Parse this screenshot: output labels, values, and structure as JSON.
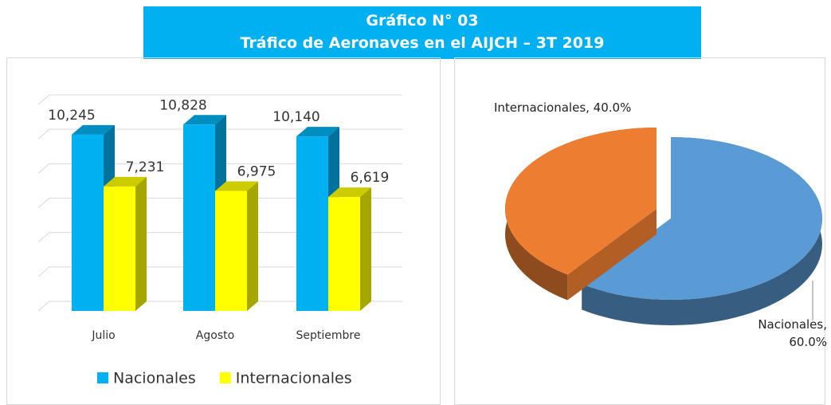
{
  "header": {
    "title": "Gráfico N° 03",
    "subtitle": "Tráfico de Aeronaves en el AIJCH – 3T 2019"
  },
  "chart_data": [
    {
      "type": "bar3d",
      "categories": [
        "Julio",
        "Agosto",
        "Septiembre"
      ],
      "series": [
        {
          "name": "Nacionales",
          "color": "#00b0f0",
          "values": [
            10245,
            10828,
            10140
          ],
          "value_labels": [
            "10,245",
            "10,828",
            "10,140"
          ]
        },
        {
          "name": "Internacionales",
          "color": "#ffff00",
          "values": [
            7231,
            6975,
            6619
          ],
          "value_labels": [
            "7,231",
            "6,975",
            "6,619"
          ]
        }
      ],
      "ylim": [
        0,
        12000
      ],
      "yticks": [
        0,
        2000,
        4000,
        6000,
        8000,
        10000,
        12000
      ],
      "grid": true
    },
    {
      "type": "pie3d",
      "values": [
        60.0,
        40.0
      ],
      "value_labels": [
        "Nacionales, 60.0%",
        "Internacionales, 40.0%"
      ],
      "colors": [
        "#5b9bd5",
        "#ed7d31"
      ]
    }
  ]
}
